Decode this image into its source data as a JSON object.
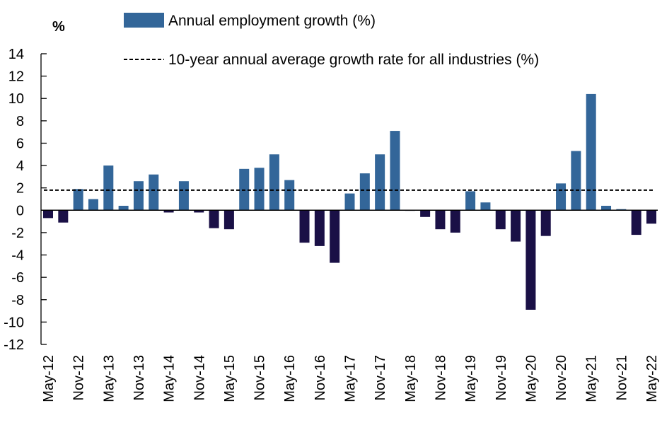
{
  "chart_data": {
    "type": "bar",
    "ylabel": "%",
    "ylim": [
      -12,
      14
    ],
    "yticks": [
      14,
      12,
      10,
      8,
      6,
      4,
      2,
      0,
      -2,
      -4,
      -6,
      -8,
      -10,
      -12
    ],
    "grid": false,
    "legend_placement": "top",
    "categories": [
      "May-12",
      "Aug-12",
      "Nov-12",
      "Feb-13",
      "May-13",
      "Aug-13",
      "Nov-13",
      "Feb-14",
      "May-14",
      "Aug-14",
      "Nov-14",
      "Feb-15",
      "May-15",
      "Aug-15",
      "Nov-15",
      "Feb-16",
      "May-16",
      "Aug-16",
      "Nov-16",
      "Feb-17",
      "May-17",
      "Aug-17",
      "Nov-17",
      "Feb-18",
      "May-18",
      "Aug-18",
      "Nov-18",
      "Feb-19",
      "May-19",
      "Aug-19",
      "Nov-19",
      "Feb-20",
      "May-20",
      "Aug-20",
      "Nov-20",
      "Feb-21",
      "May-21",
      "Aug-21",
      "Nov-21",
      "Feb-22",
      "May-22"
    ],
    "xtick_labels": [
      "May-12",
      "Nov-12",
      "May-13",
      "Nov-13",
      "May-14",
      "Nov-14",
      "May-15",
      "Nov-15",
      "May-16",
      "Nov-16",
      "May-17",
      "Nov-17",
      "May-18",
      "Nov-18",
      "May-19",
      "Nov-19",
      "May-20",
      "Nov-20",
      "May-21",
      "Nov-21",
      "May-22"
    ],
    "series": [
      {
        "name": "Annual employment growth (%)",
        "type": "bar",
        "values": [
          -0.7,
          -1.1,
          1.9,
          1.0,
          4.0,
          0.4,
          2.6,
          3.2,
          -0.2,
          2.6,
          -0.2,
          -1.6,
          -1.7,
          3.7,
          3.8,
          5.0,
          2.7,
          -2.9,
          -3.2,
          -4.7,
          1.5,
          3.3,
          5.0,
          7.1,
          -0.05,
          -0.6,
          -1.7,
          -2.0,
          1.7,
          0.7,
          -1.7,
          -2.8,
          -8.9,
          -2.3,
          2.4,
          5.3,
          10.4,
          0.4,
          0.1,
          -2.2,
          -1.2
        ]
      },
      {
        "name": "10-year annual average growth rate for all industries (%)",
        "type": "line-dashed",
        "value": 1.8
      }
    ],
    "colors": {
      "positive": "#336699",
      "negative": "#1a1046",
      "average_line": "#000000"
    }
  }
}
